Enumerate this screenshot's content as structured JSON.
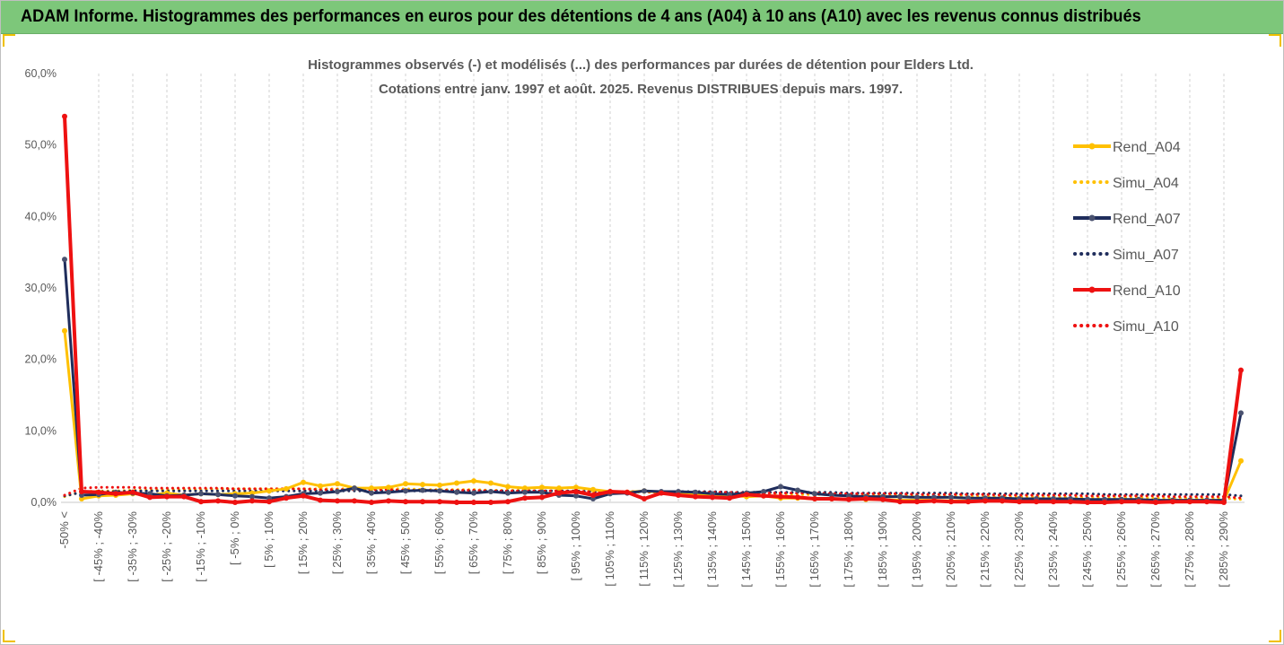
{
  "header": {
    "title": "ADAM Informe. Histogrammes des performances en euros pour des détentions de 4 ans (A04) à 10 ans (A10) avec les revenus connus distribués",
    "background": "#7dc77a"
  },
  "chart_data": {
    "type": "line",
    "title": "Histogrammes observés (-) et modélisés (...) des performances par durées de détention pour Elders Ltd.",
    "subtitle": "Cotations entre janv. 1997 et août. 2025. Revenus DISTRIBUES depuis mars. 1997.",
    "xlabel": "",
    "ylabel": "",
    "ylim": [
      0,
      60
    ],
    "y_ticks": [
      "0,0%",
      "10,0%",
      "20,0%",
      "30,0%",
      "40,0%",
      "50,0%",
      "60,0%"
    ],
    "x_tick_labels": [
      "-50% <",
      "[ -45% ; -40%",
      "[ -35% ; -30%",
      "[ -25% ; -20%",
      "[ -15% ; -10%",
      "[ -5% ; 0%",
      "[ 5% ; 10%",
      "[ 15% ; 20%",
      "[ 25% ; 30%",
      "[ 35% ; 40%",
      "[ 45% ; 50%",
      "[ 55% ; 60%",
      "[ 65% ; 70%",
      "[ 75% ; 80%",
      "[ 85% ; 90%",
      "[ 95% ; 100%",
      "[ 105% ; 110%",
      "[ 115% ; 120%",
      "[ 125% ; 130%",
      "[ 135% ; 140%",
      "[ 145% ; 150%",
      "[ 155% ; 160%",
      "[ 165% ; 170%",
      "[ 175% ; 180%",
      "[ 185% ; 190%",
      "[ 195% ; 200%",
      "[ 205% ; 210%",
      "[ 215% ; 220%",
      "[ 225% ; 230%",
      "[ 235% ; 240%",
      "[ 245% ; 250%",
      "[ 255% ; 260%",
      "[ 265% ; 270%",
      "[ 275% ; 280%",
      "[ 285% ; 290%"
    ],
    "num_bins": 70,
    "grid": "vertical dashed",
    "legend_position": "right",
    "series": [
      {
        "name": "Rend_A04",
        "style": "solid",
        "marker": true,
        "color": "#ffc000",
        "values": [
          24.0,
          0.5,
          0.9,
          1.0,
          1.2,
          1.0,
          1.3,
          1.0,
          1.2,
          1.1,
          1.2,
          1.3,
          1.6,
          1.9,
          2.8,
          2.3,
          2.6,
          2.0,
          2.0,
          2.1,
          2.6,
          2.5,
          2.4,
          2.7,
          3.0,
          2.7,
          2.2,
          2.0,
          2.1,
          2.0,
          2.1,
          1.8,
          1.5,
          1.4,
          1.6,
          1.4,
          1.2,
          1.0,
          1.1,
          1.0,
          0.8,
          0.9,
          0.6,
          0.6,
          0.5,
          0.5,
          0.5,
          0.4,
          0.4,
          0.3,
          0.3,
          0.3,
          0.2,
          0.2,
          0.2,
          0.2,
          0.2,
          0.2,
          0.2,
          0.2,
          0.2,
          0.2,
          0.2,
          0.2,
          0.2,
          0.2,
          0.2,
          0.2,
          0.2,
          5.8
        ]
      },
      {
        "name": "Simu_A04",
        "style": "dotted",
        "marker": false,
        "color": "#ffc000",
        "values": [
          0.8,
          1.5,
          1.6,
          1.6,
          1.7,
          1.7,
          1.8,
          1.8,
          1.8,
          1.9,
          1.9,
          1.9,
          1.9,
          1.9,
          1.9,
          1.9,
          1.9,
          1.9,
          1.9,
          1.9,
          1.9,
          1.8,
          1.8,
          1.8,
          1.8,
          1.7,
          1.7,
          1.7,
          1.6,
          1.6,
          1.6,
          1.5,
          1.5,
          1.5,
          1.4,
          1.4,
          1.4,
          1.3,
          1.3,
          1.3,
          1.2,
          1.2,
          1.2,
          1.1,
          1.1,
          1.1,
          1.0,
          1.0,
          1.0,
          1.0,
          0.9,
          0.9,
          0.9,
          0.9,
          0.8,
          0.8,
          0.8,
          0.8,
          0.8,
          0.7,
          0.7,
          0.7,
          0.7,
          0.7,
          0.6,
          0.6,
          0.6,
          0.6,
          0.6,
          0.4
        ]
      },
      {
        "name": "Rend_A07",
        "style": "solid",
        "marker": true,
        "color": "#1f2d5c",
        "values": [
          34.0,
          1.0,
          1.1,
          1.4,
          1.3,
          1.2,
          0.9,
          1.0,
          1.2,
          1.1,
          0.9,
          0.8,
          0.6,
          0.8,
          1.2,
          1.3,
          1.5,
          2.0,
          1.3,
          1.4,
          1.6,
          1.7,
          1.6,
          1.4,
          1.3,
          1.5,
          1.3,
          1.4,
          1.4,
          1.0,
          0.9,
          0.5,
          1.2,
          1.3,
          1.6,
          1.5,
          1.5,
          1.4,
          1.2,
          1.1,
          1.3,
          1.5,
          2.2,
          1.7,
          1.2,
          1.0,
          0.9,
          0.8,
          0.8,
          0.8,
          0.7,
          0.7,
          0.7,
          0.6,
          0.6,
          0.6,
          0.5,
          0.5,
          0.5,
          0.5,
          0.4,
          0.4,
          0.4,
          0.4,
          0.3,
          0.3,
          0.3,
          0.3,
          0.3,
          12.5
        ]
      },
      {
        "name": "Simu_A07",
        "style": "dotted",
        "marker": false,
        "color": "#1f2d5c",
        "values": [
          0.9,
          1.4,
          1.5,
          1.5,
          1.6,
          1.6,
          1.6,
          1.6,
          1.6,
          1.6,
          1.6,
          1.6,
          1.6,
          1.6,
          1.6,
          1.6,
          1.6,
          1.6,
          1.6,
          1.6,
          1.6,
          1.6,
          1.6,
          1.6,
          1.6,
          1.6,
          1.6,
          1.6,
          1.6,
          1.6,
          1.6,
          1.5,
          1.5,
          1.5,
          1.5,
          1.5,
          1.5,
          1.5,
          1.5,
          1.4,
          1.4,
          1.4,
          1.4,
          1.4,
          1.4,
          1.4,
          1.3,
          1.3,
          1.3,
          1.3,
          1.3,
          1.3,
          1.3,
          1.2,
          1.2,
          1.2,
          1.2,
          1.2,
          1.2,
          1.2,
          1.2,
          1.1,
          1.1,
          1.1,
          1.1,
          1.1,
          1.1,
          1.1,
          1.1,
          0.9
        ]
      },
      {
        "name": "Rend_A10",
        "style": "solid",
        "marker": true,
        "color": "#ee1111",
        "values": [
          54.0,
          1.5,
          1.4,
          1.2,
          1.4,
          0.7,
          0.8,
          0.8,
          0.1,
          0.2,
          0.0,
          0.2,
          0.1,
          0.6,
          0.9,
          0.3,
          0.2,
          0.2,
          0.0,
          0.2,
          0.1,
          0.1,
          0.1,
          0.0,
          0.0,
          0.0,
          0.1,
          0.6,
          0.7,
          1.3,
          1.5,
          1.0,
          1.5,
          1.4,
          0.5,
          1.3,
          1.0,
          0.8,
          0.7,
          0.6,
          1.1,
          0.9,
          0.8,
          0.7,
          0.5,
          0.5,
          0.4,
          0.5,
          0.4,
          0.1,
          0.1,
          0.2,
          0.1,
          0.1,
          0.2,
          0.2,
          0.1,
          0.1,
          0.1,
          0.1,
          0.0,
          0.0,
          0.1,
          0.1,
          0.0,
          0.1,
          0.1,
          0.1,
          0.0,
          18.5
        ]
      },
      {
        "name": "Simu_A10",
        "style": "dotted",
        "marker": false,
        "color": "#ee1111",
        "values": [
          1.0,
          2.0,
          2.1,
          2.1,
          2.1,
          2.0,
          2.0,
          2.0,
          2.0,
          2.0,
          1.9,
          1.9,
          1.9,
          1.9,
          1.9,
          1.8,
          1.8,
          1.8,
          1.8,
          1.8,
          1.7,
          1.7,
          1.7,
          1.7,
          1.7,
          1.6,
          1.6,
          1.6,
          1.6,
          1.6,
          1.5,
          1.5,
          1.5,
          1.5,
          1.5,
          1.4,
          1.4,
          1.4,
          1.4,
          1.4,
          1.3,
          1.3,
          1.3,
          1.3,
          1.3,
          1.2,
          1.2,
          1.2,
          1.2,
          1.2,
          1.1,
          1.1,
          1.1,
          1.1,
          1.1,
          1.0,
          1.0,
          1.0,
          1.0,
          1.0,
          0.9,
          0.9,
          0.9,
          0.9,
          0.9,
          0.8,
          0.8,
          0.8,
          0.8,
          0.6
        ]
      }
    ]
  }
}
